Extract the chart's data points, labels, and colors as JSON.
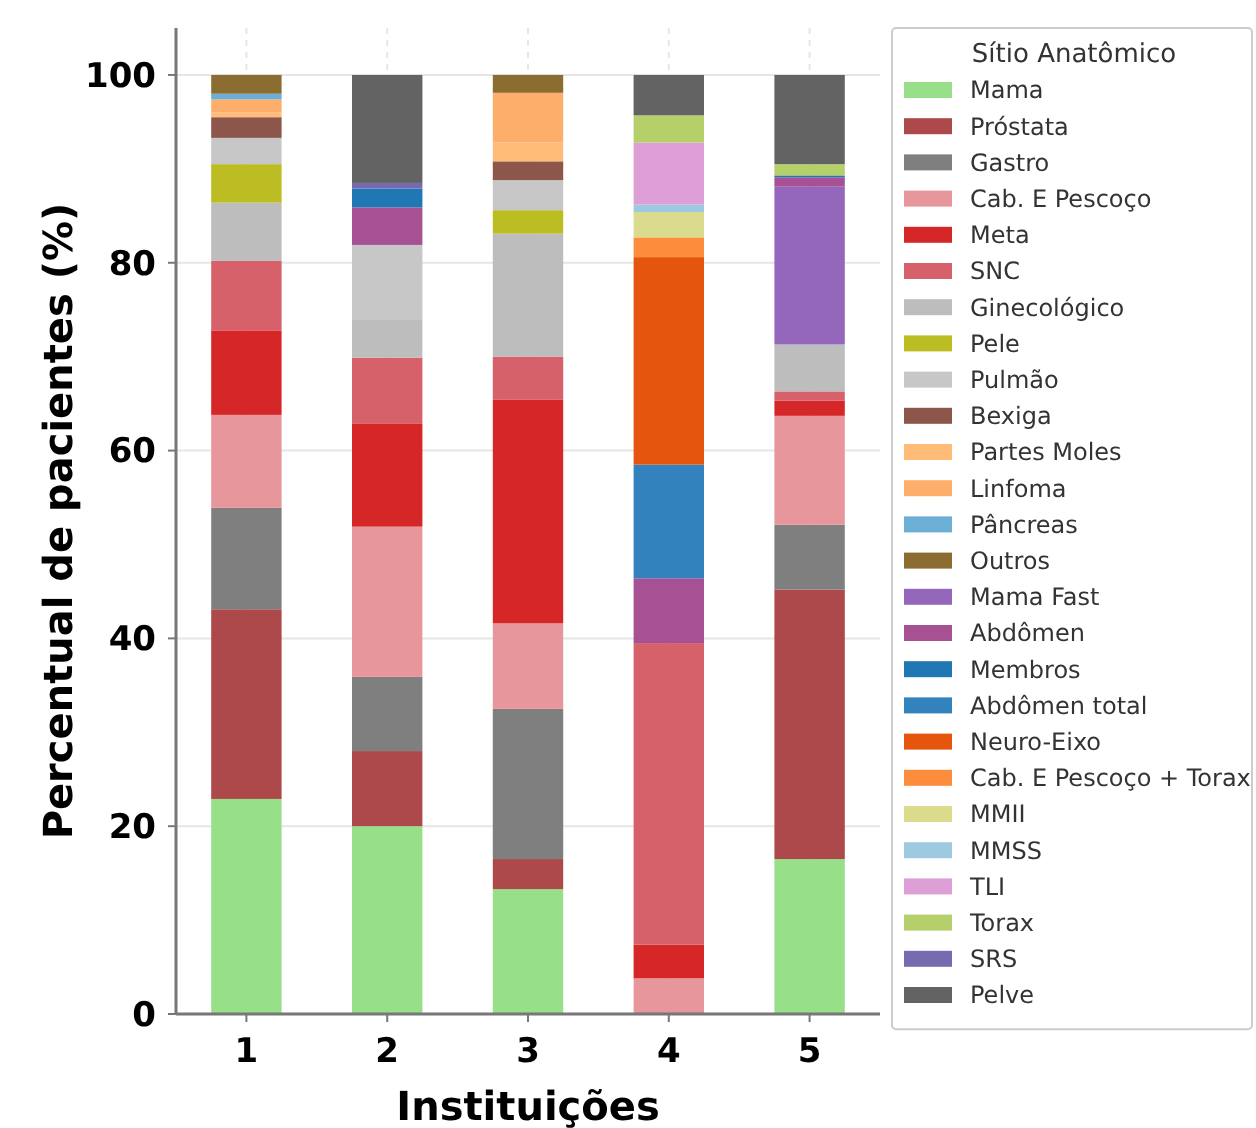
{
  "chart_data": {
    "type": "bar",
    "stacked": true,
    "xlabel": "Instituições",
    "ylabel": "Percentual de pacientes (%)",
    "legend_title": "Sítio Anatômico",
    "legend": "right",
    "grid": true,
    "categories": [
      "1",
      "2",
      "3",
      "4",
      "5"
    ],
    "ylim": [
      0,
      105
    ],
    "yticks": [
      0,
      20,
      40,
      60,
      80,
      100
    ],
    "series": [
      {
        "name": "Mama",
        "color": "#98df8a",
        "values": [
          22.9,
          20,
          13.3,
          0,
          16.5
        ]
      },
      {
        "name": "Próstata",
        "color": "#ad494a",
        "values": [
          20.2,
          8,
          3.2,
          0,
          28.7
        ]
      },
      {
        "name": "Gastro",
        "color": "#7f7f7f",
        "values": [
          10.8,
          7.9,
          16,
          0,
          6.9
        ]
      },
      {
        "name": "Cab. E Pescoço",
        "color": "#e7969c",
        "values": [
          9.9,
          16,
          9.1,
          3.8,
          11.6
        ]
      },
      {
        "name": "Meta",
        "color": "#d62728",
        "values": [
          9,
          11,
          23.8,
          3.6,
          1.6
        ]
      },
      {
        "name": "SNC",
        "color": "#d6616b",
        "values": [
          7.4,
          7,
          4.6,
          32.1,
          1
        ]
      },
      {
        "name": "Ginecológico",
        "color": "#bdbdbd",
        "values": [
          6.2,
          4,
          13.1,
          0,
          5
        ]
      },
      {
        "name": "Pele",
        "color": "#bcbd22",
        "values": [
          4.1,
          0,
          2.5,
          0,
          0
        ]
      },
      {
        "name": "Pulmão",
        "color": "#c7c7c7",
        "values": [
          2.8,
          8,
          3.2,
          0,
          0
        ]
      },
      {
        "name": "Bexiga",
        "color": "#8c564b",
        "values": [
          2.2,
          0,
          2,
          0,
          0
        ]
      },
      {
        "name": "Partes Moles",
        "color": "#ffbb78",
        "values": [
          0.5,
          0,
          2,
          0,
          0
        ]
      },
      {
        "name": "Linfoma",
        "color": "#fdae6b",
        "values": [
          1.4,
          0,
          5.3,
          0,
          0
        ]
      },
      {
        "name": "Pâncreas",
        "color": "#6baed6",
        "values": [
          0.6,
          0,
          0,
          0,
          0
        ]
      },
      {
        "name": "Outros",
        "color": "#8c6d31",
        "values": [
          2,
          0,
          1.9,
          0,
          0
        ]
      },
      {
        "name": "Mama Fast",
        "color": "#9467bd",
        "values": [
          0,
          0,
          0,
          0,
          16.8
        ]
      },
      {
        "name": "Abdômen",
        "color": "#a55194",
        "values": [
          0,
          4,
          0,
          6.9,
          1
        ]
      },
      {
        "name": "Membros",
        "color": "#1f77b4",
        "values": [
          0,
          2,
          0,
          0,
          0.2
        ]
      },
      {
        "name": "Abdômen total",
        "color": "#3182bd",
        "values": [
          0,
          0,
          0,
          12.1,
          0
        ]
      },
      {
        "name": "Neuro-Eixo",
        "color": "#e6550d",
        "values": [
          0,
          0,
          0,
          22.1,
          0
        ]
      },
      {
        "name": "Cab. E Pescoço + Torax",
        "color": "#fd8d3c",
        "values": [
          0,
          0,
          0,
          2.1,
          0
        ]
      },
      {
        "name": "MMII",
        "color": "#dbdb8d",
        "values": [
          0,
          0,
          0,
          2.7,
          0
        ]
      },
      {
        "name": "MMSS",
        "color": "#9ecae1",
        "values": [
          0,
          0,
          0,
          0.8,
          0
        ]
      },
      {
        "name": "TLI",
        "color": "#de9ed6",
        "values": [
          0,
          0,
          0,
          6.6,
          0
        ]
      },
      {
        "name": "Torax",
        "color": "#b5cf6b",
        "values": [
          0,
          0,
          0,
          2.9,
          1.2
        ]
      },
      {
        "name": "SRS",
        "color": "#756bb1",
        "values": [
          0,
          0.6,
          0,
          0,
          0
        ]
      },
      {
        "name": "Pelve",
        "color": "#636363",
        "values": [
          0,
          11.5,
          0,
          4.3,
          9.5
        ]
      }
    ]
  }
}
